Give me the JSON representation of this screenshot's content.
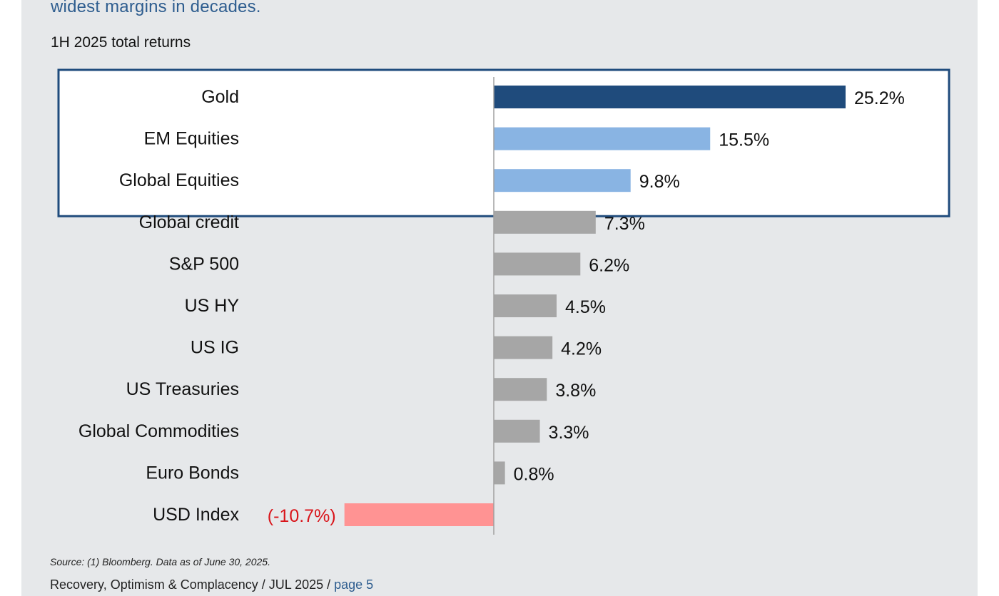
{
  "header": {
    "subtitle": "widest margins in decades."
  },
  "chart_data": {
    "type": "bar",
    "orientation": "horizontal",
    "title": "1H 2025 total returns",
    "categories": [
      "Gold",
      "EM Equities",
      "Global Equities",
      "Global credit",
      "S&P 500",
      "US HY",
      "US IG",
      "US Treasuries",
      "Global Commodities",
      "Euro Bonds",
      "USD Index"
    ],
    "values": [
      25.2,
      15.5,
      9.8,
      7.3,
      6.2,
      4.5,
      4.2,
      3.8,
      3.3,
      0.8,
      -10.7
    ],
    "data_labels": [
      "25.2%",
      "15.5%",
      "9.8%",
      "7.3%",
      "6.2%",
      "4.5%",
      "4.2%",
      "3.8%",
      "3.3%",
      "0.8%",
      "(-10.7%)"
    ],
    "bar_colors": [
      "#1f4b7c",
      "#89b4e3",
      "#89b4e3",
      "#a6a6a6",
      "#a6a6a6",
      "#a6a6a6",
      "#a6a6a6",
      "#a6a6a6",
      "#a6a6a6",
      "#a6a6a6",
      "#ff9393"
    ],
    "negative_label_color": "#d9151b",
    "highlight_box": {
      "categories": [
        "Gold",
        "EM Equities",
        "Global Equities"
      ],
      "border_color": "#1f4b7c"
    },
    "xlim": [
      -10.7,
      25.2
    ],
    "grid": false,
    "legend": "none"
  },
  "footnote": {
    "source": "Source: (1) Bloomberg. Data as of June 30, 2025."
  },
  "footer": {
    "text": "Recovery, Optimism & Complacency / JUL 2025 / ",
    "page_link": "page 5"
  },
  "colors": {
    "panel_background": "#e6e8ea",
    "accent_blue": "#2e5d8f"
  }
}
